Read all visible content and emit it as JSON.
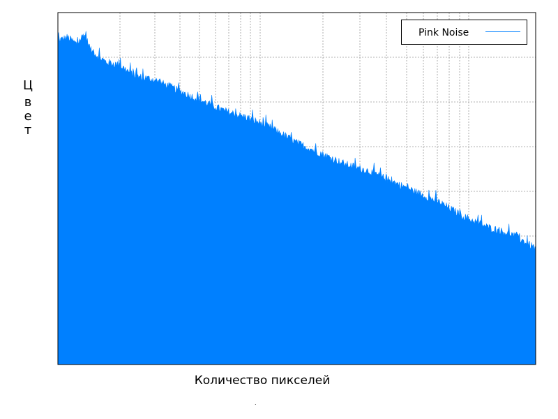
{
  "chart_data": {
    "type": "area",
    "title": "",
    "xlabel": "Количество пикселей",
    "ylabel": "Цвет",
    "xscale": "log",
    "x_tick_labels": [],
    "y_tick_labels": [],
    "grid": true,
    "legend_placement": "top-right",
    "color": "#0080ff",
    "series": [
      {
        "name": "Pink Noise",
        "points": [
          [
            0.0,
            0.92
          ],
          [
            0.02,
            0.93
          ],
          [
            0.04,
            0.91
          ],
          [
            0.055,
            0.94
          ],
          [
            0.07,
            0.89
          ],
          [
            0.1,
            0.86
          ],
          [
            0.13,
            0.85
          ],
          [
            0.16,
            0.82
          ],
          [
            0.2,
            0.81
          ],
          [
            0.25,
            0.78
          ],
          [
            0.3,
            0.75
          ],
          [
            0.35,
            0.72
          ],
          [
            0.4,
            0.7
          ],
          [
            0.45,
            0.67
          ],
          [
            0.5,
            0.63
          ],
          [
            0.55,
            0.6
          ],
          [
            0.6,
            0.57
          ],
          [
            0.65,
            0.55
          ],
          [
            0.7,
            0.52
          ],
          [
            0.75,
            0.49
          ],
          [
            0.8,
            0.46
          ],
          [
            0.85,
            0.42
          ],
          [
            0.9,
            0.39
          ],
          [
            0.95,
            0.37
          ],
          [
            1.0,
            0.33
          ]
        ]
      }
    ]
  },
  "legend": {
    "label": "Pink Noise"
  },
  "axes": {
    "xlabel": "Количество пикселей",
    "ylabel_chars": [
      "Ц",
      "в",
      "е",
      "т"
    ]
  },
  "footer_mark": "."
}
